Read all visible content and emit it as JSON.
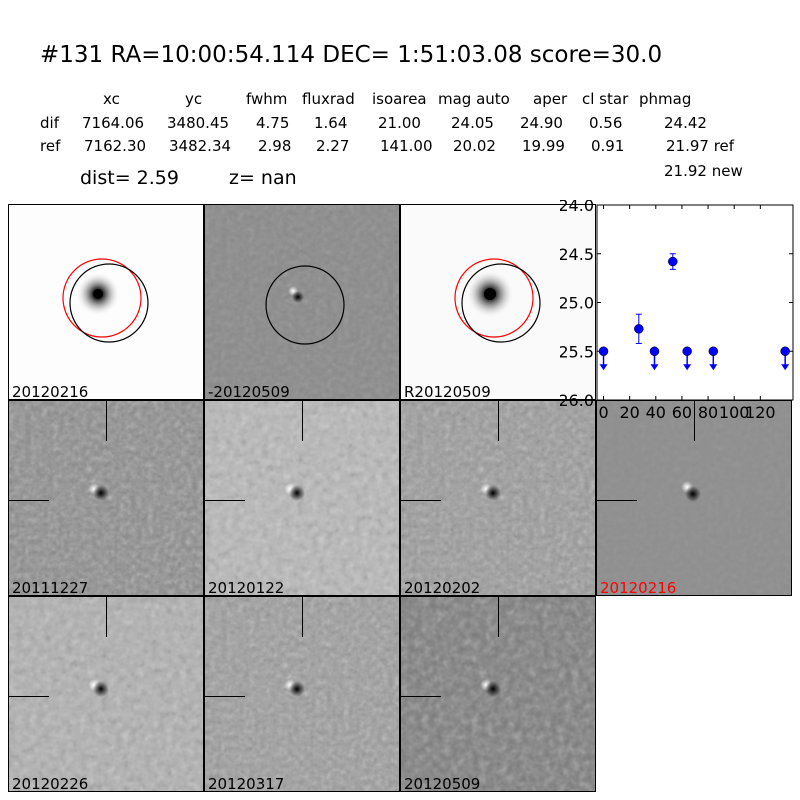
{
  "title": "#131   RA=10:00:54.114 DEC= 1:51:03.08      score=30.0",
  "table": {
    "headers": [
      "xc",
      "yc",
      "fwhm",
      "fluxrad",
      "isoarea",
      "mag auto",
      "aper",
      "cl star",
      "phmag"
    ],
    "rows": [
      {
        "label": "dif",
        "values": [
          "7164.06",
          "3480.45",
          "4.75",
          "1.64",
          "21.00",
          "24.05",
          "24.90",
          "0.56",
          "24.42"
        ]
      },
      {
        "label": "ref",
        "values": [
          "7162.30",
          "3482.34",
          "2.98",
          "2.27",
          "141.00",
          "20.02",
          "19.99",
          "0.91",
          "21.97 ref"
        ]
      }
    ],
    "extra": "21.92 new"
  },
  "dist": "dist=  2.59",
  "z": "z=   nan",
  "stamps": {
    "top": [
      "20120216",
      "-20120509",
      "R20120509"
    ],
    "row2": [
      "20111227",
      "20120122",
      "20120202",
      "20120216"
    ],
    "row3": [
      "20120226",
      "20120317",
      "20120509"
    ]
  },
  "colors": {
    "highlight_label": "#ff0000",
    "points": "#0000ff",
    "circle_red": "#ff0000",
    "circle_black": "#000000"
  },
  "chart_data": {
    "type": "scatter",
    "title": "",
    "xlabel": "",
    "ylabel": "",
    "xlim": [
      -5,
      145
    ],
    "ylim": [
      26.0,
      24.0
    ],
    "y_inverted": true,
    "xticks": [
      "0",
      "20",
      "40",
      "60",
      "80",
      "100",
      "120"
    ],
    "yticks": [
      "24.0",
      "24.5",
      "25.0",
      "25.5",
      "26.0"
    ],
    "points": [
      {
        "x": 0,
        "y": 25.5,
        "upper_limit": true
      },
      {
        "x": 27,
        "y": 25.27,
        "err": 0.15,
        "upper_limit": false
      },
      {
        "x": 39,
        "y": 25.5,
        "upper_limit": true
      },
      {
        "x": 53,
        "y": 24.58,
        "err": 0.08,
        "upper_limit": false
      },
      {
        "x": 64,
        "y": 25.5,
        "upper_limit": true
      },
      {
        "x": 84,
        "y": 25.5,
        "upper_limit": true
      },
      {
        "x": 139,
        "y": 25.5,
        "upper_limit": true
      }
    ]
  }
}
